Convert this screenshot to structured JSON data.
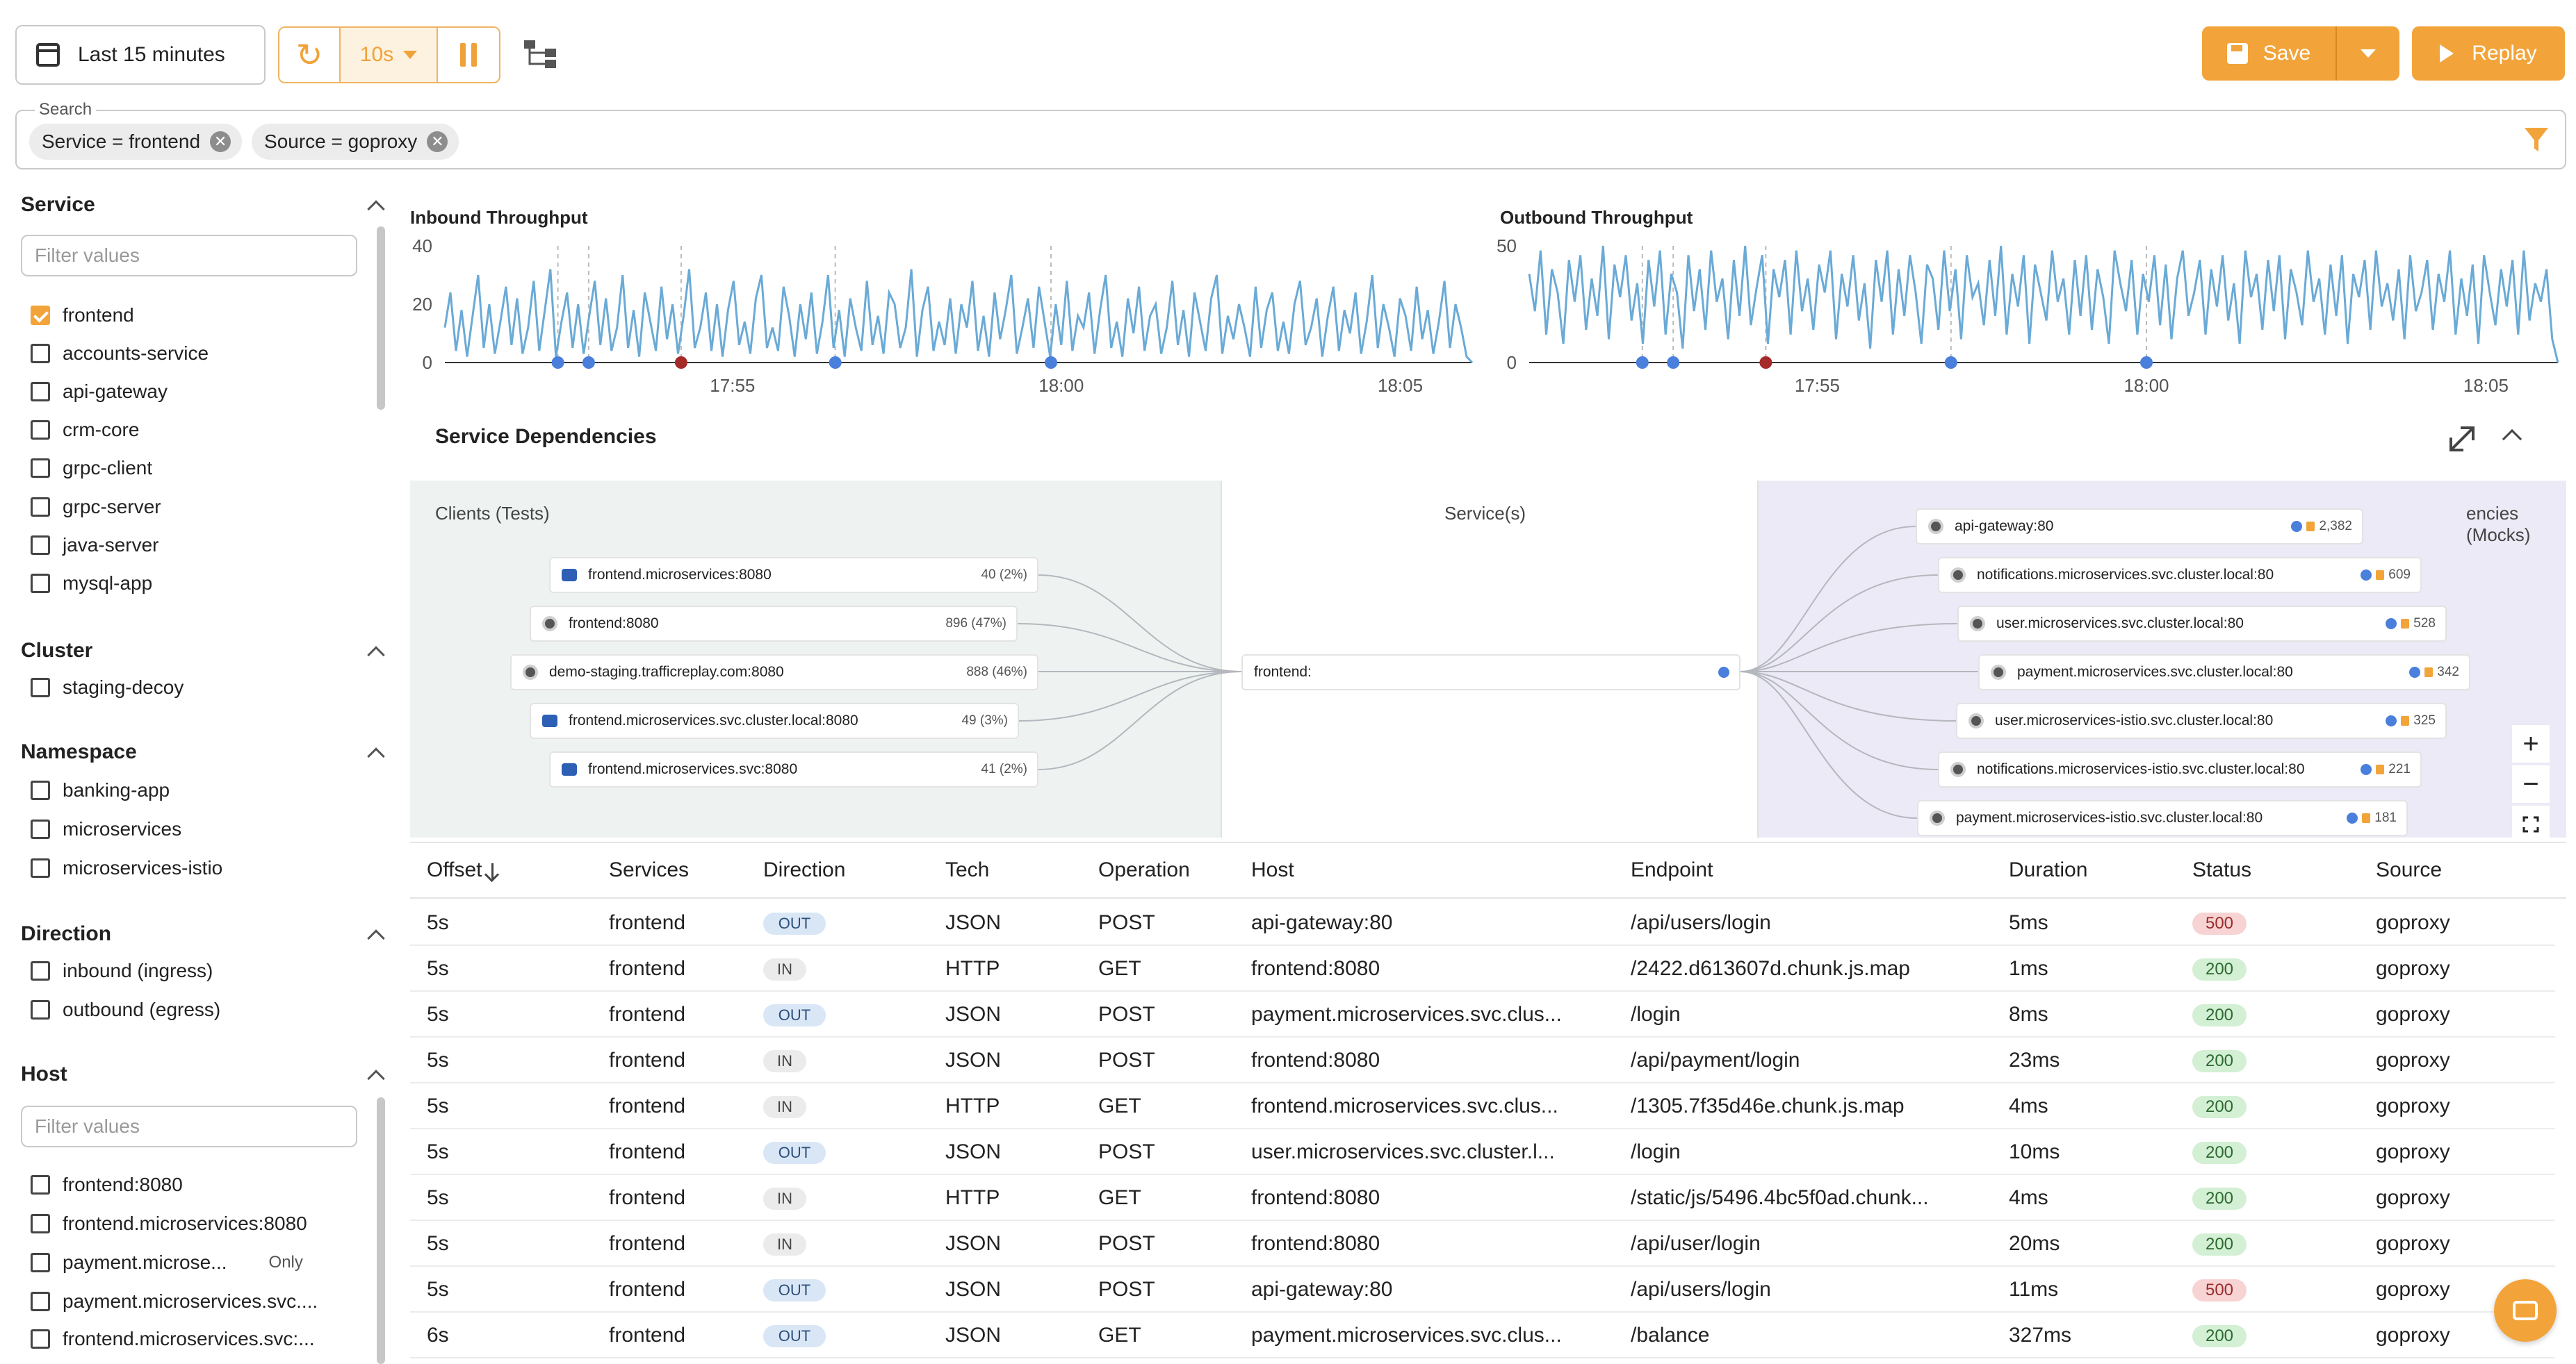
{
  "toolbar": {
    "time_range": "Last 15 minutes",
    "refresh_interval": "10s",
    "save_label": "Save",
    "replay_label": "Replay",
    "accent_color": "#f2a43a"
  },
  "search": {
    "legend": "Search",
    "chips": [
      {
        "label": "Service = frontend"
      },
      {
        "label": "Source = goproxy"
      }
    ]
  },
  "sidebar": {
    "service": {
      "title": "Service",
      "placeholder": "Filter values",
      "items": [
        {
          "label": "frontend",
          "checked": true
        },
        {
          "label": "accounts-service",
          "checked": false
        },
        {
          "label": "api-gateway",
          "checked": false
        },
        {
          "label": "crm-core",
          "checked": false
        },
        {
          "label": "grpc-client",
          "checked": false
        },
        {
          "label": "grpc-server",
          "checked": false
        },
        {
          "label": "java-server",
          "checked": false
        },
        {
          "label": "mysql-app",
          "checked": false
        }
      ]
    },
    "cluster": {
      "title": "Cluster",
      "items": [
        {
          "label": "staging-decoy"
        }
      ]
    },
    "namespace": {
      "title": "Namespace",
      "items": [
        {
          "label": "banking-app"
        },
        {
          "label": "microservices"
        },
        {
          "label": "microservices-istio"
        }
      ]
    },
    "direction": {
      "title": "Direction",
      "items": [
        {
          "label": "inbound (ingress)"
        },
        {
          "label": "outbound (egress)"
        }
      ]
    },
    "host": {
      "title": "Host",
      "placeholder": "Filter values",
      "only_label": "Only",
      "items": [
        {
          "label": "frontend:8080"
        },
        {
          "label": "frontend.microservices:8080"
        },
        {
          "label": "payment.microse..."
        },
        {
          "label": "payment.microservices.svc...."
        },
        {
          "label": "frontend.microservices.svc:..."
        }
      ]
    }
  },
  "chart_data": [
    {
      "type": "line",
      "title": "Inbound Throughput",
      "x_ticks": [
        "17:55",
        "18:00",
        "18:05"
      ],
      "y_ticks": [
        0,
        20,
        40
      ],
      "ylim": [
        0,
        40
      ],
      "color": "#6aaad6",
      "series": [
        {
          "values": [
            12,
            24,
            4,
            18,
            2,
            16,
            30,
            5,
            20,
            3,
            14,
            26,
            6,
            22,
            3,
            12,
            28,
            4,
            18,
            32,
            2,
            14,
            24,
            5,
            20,
            3,
            16,
            28,
            6,
            22,
            4,
            12,
            30,
            5,
            18,
            2,
            24,
            14,
            4,
            26,
            8,
            20,
            3,
            16,
            32,
            5,
            12,
            24,
            4,
            20,
            2,
            18,
            28,
            6,
            14,
            3,
            22,
            30,
            5,
            12,
            4,
            26,
            16,
            2,
            20,
            8,
            24,
            3,
            14,
            30,
            5,
            18,
            2,
            22,
            12,
            4,
            28,
            6,
            16,
            3,
            24,
            20,
            5,
            12,
            32,
            2,
            18,
            26,
            4,
            14,
            6,
            22,
            3,
            20,
            12,
            28,
            4,
            16,
            2,
            24,
            8,
            18,
            30,
            3,
            12,
            22,
            5,
            26,
            14,
            2,
            20,
            6,
            28,
            4,
            16,
            12,
            24,
            3,
            18,
            30,
            5,
            14,
            2,
            22,
            10,
            26,
            4,
            16,
            20,
            3,
            12,
            28,
            6,
            18,
            2,
            24,
            14,
            4,
            22,
            30,
            3,
            16,
            8,
            20,
            12,
            2,
            26,
            5,
            18,
            24,
            4,
            14,
            3,
            20,
            28,
            6,
            12,
            22,
            2,
            16,
            26,
            4,
            18,
            10,
            24,
            3,
            14,
            30,
            5,
            20,
            12,
            2,
            22,
            16,
            4,
            26,
            8,
            18,
            3,
            14,
            28,
            5,
            20,
            12,
            2,
            0
          ],
          "markers": [
            {
              "at": 0.11,
              "color": "#4a7fdc"
            },
            {
              "at": 0.14,
              "color": "#4a7fdc"
            },
            {
              "at": 0.23,
              "color": "#a52a2a"
            },
            {
              "at": 0.38,
              "color": "#4a7fdc"
            },
            {
              "at": 0.59,
              "color": "#4a7fdc"
            }
          ]
        }
      ]
    },
    {
      "type": "line",
      "title": "Outbound Throughput",
      "x_ticks": [
        "17:55",
        "18:00",
        "18:05"
      ],
      "y_ticks": [
        0,
        50
      ],
      "ylim": [
        0,
        50
      ],
      "color": "#6aaad6",
      "series": [
        {
          "values": [
            38,
            22,
            48,
            12,
            40,
            30,
            8,
            44,
            26,
            46,
            14,
            36,
            20,
            50,
            10,
            42,
            28,
            46,
            18,
            34,
            8,
            44,
            24,
            48,
            12,
            38,
            30,
            6,
            46,
            22,
            40,
            14,
            48,
            26,
            36,
            10,
            44,
            20,
            50,
            16,
            32,
            46,
            8,
            40,
            28,
            44,
            12,
            48,
            22,
            36,
            14,
            42,
            30,
            48,
            10,
            38,
            24,
            46,
            18,
            34,
            6,
            44,
            26,
            48,
            12,
            40,
            20,
            46,
            30,
            8,
            42,
            36,
            14,
            48,
            22,
            40,
            10,
            46,
            28,
            34,
            16,
            44,
            20,
            50,
            12,
            38,
            24,
            46,
            8,
            42,
            30,
            18,
            48,
            26,
            36,
            12,
            44,
            20,
            46,
            14,
            40,
            28,
            8,
            48,
            34,
            22,
            44,
            12,
            38,
            26,
            46,
            16,
            42,
            10,
            36,
            48,
            20,
            30,
            44,
            12,
            40,
            24,
            46,
            18,
            34,
            8,
            48,
            28,
            38,
            14,
            44,
            22,
            46,
            10,
            40,
            30,
            16,
            48,
            26,
            36,
            12,
            42,
            20,
            46,
            8,
            38,
            28,
            44,
            14,
            48,
            24,
            34,
            18,
            40,
            10,
            46,
            22,
            30,
            44,
            14,
            38,
            26,
            48,
            12,
            36,
            20,
            42,
            8,
            46,
            30,
            16,
            40,
            24,
            44,
            12,
            48,
            18,
            34,
            26,
            40,
            10,
            0
          ],
          "markers": [
            {
              "at": 0.11,
              "color": "#4a7fdc"
            },
            {
              "at": 0.14,
              "color": "#4a7fdc"
            },
            {
              "at": 0.23,
              "color": "#a52a2a"
            },
            {
              "at": 0.41,
              "color": "#4a7fdc"
            },
            {
              "at": 0.6,
              "color": "#4a7fdc"
            }
          ]
        }
      ]
    }
  ],
  "dependencies": {
    "title": "Service Dependencies",
    "col_clients": "Clients (Tests)",
    "col_services": "Service(s)",
    "col_deps": "encies (Mocks)",
    "clients": [
      {
        "label": "frontend.microservices:8080",
        "count": "40 (2%)",
        "icon": "json"
      },
      {
        "label": "frontend:8080",
        "count": "896 (47%)",
        "icon": "go"
      },
      {
        "label": "demo-staging.trafficreplay.com:8080",
        "count": "888 (46%)",
        "icon": "go"
      },
      {
        "label": "frontend.microservices.svc.cluster.local:8080",
        "count": "49 (3%)",
        "icon": "json"
      },
      {
        "label": "frontend.microservices.svc:8080",
        "count": "41 (2%)",
        "icon": "json"
      }
    ],
    "service": {
      "label": "frontend:"
    },
    "deps": [
      {
        "label": "api-gateway:80",
        "count": "2,382"
      },
      {
        "label": "notifications.microservices.svc.cluster.local:80",
        "count": "609"
      },
      {
        "label": "user.microservices.svc.cluster.local:80",
        "count": "528"
      },
      {
        "label": "payment.microservices.svc.cluster.local:80",
        "count": "342"
      },
      {
        "label": "user.microservices-istio.svc.cluster.local:80",
        "count": "325"
      },
      {
        "label": "notifications.microservices-istio.svc.cluster.local:80",
        "count": "221"
      },
      {
        "label": "payment.microservices-istio.svc.cluster.local:80",
        "count": "181"
      }
    ]
  },
  "table": {
    "columns": [
      "Offset",
      "Services",
      "Direction",
      "Tech",
      "Operation",
      "Host",
      "Endpoint",
      "Duration",
      "Status",
      "Source"
    ],
    "rows": [
      {
        "offset": "5s",
        "service": "frontend",
        "direction": "OUT",
        "tech": "JSON",
        "operation": "POST",
        "host": "api-gateway:80",
        "endpoint": "/api/users/login",
        "duration": "5ms",
        "status": "500",
        "source": "goproxy"
      },
      {
        "offset": "5s",
        "service": "frontend",
        "direction": "IN",
        "tech": "HTTP",
        "operation": "GET",
        "host": "frontend:8080",
        "endpoint": "/2422.d613607d.chunk.js.map",
        "duration": "1ms",
        "status": "200",
        "source": "goproxy"
      },
      {
        "offset": "5s",
        "service": "frontend",
        "direction": "OUT",
        "tech": "JSON",
        "operation": "POST",
        "host": "payment.microservices.svc.clus...",
        "endpoint": "/login",
        "duration": "8ms",
        "status": "200",
        "source": "goproxy"
      },
      {
        "offset": "5s",
        "service": "frontend",
        "direction": "IN",
        "tech": "JSON",
        "operation": "POST",
        "host": "frontend:8080",
        "endpoint": "/api/payment/login",
        "duration": "23ms",
        "status": "200",
        "source": "goproxy"
      },
      {
        "offset": "5s",
        "service": "frontend",
        "direction": "IN",
        "tech": "HTTP",
        "operation": "GET",
        "host": "frontend.microservices.svc.clus...",
        "endpoint": "/1305.7f35d46e.chunk.js.map",
        "duration": "4ms",
        "status": "200",
        "source": "goproxy"
      },
      {
        "offset": "5s",
        "service": "frontend",
        "direction": "OUT",
        "tech": "JSON",
        "operation": "POST",
        "host": "user.microservices.svc.cluster.l...",
        "endpoint": "/login",
        "duration": "10ms",
        "status": "200",
        "source": "goproxy"
      },
      {
        "offset": "5s",
        "service": "frontend",
        "direction": "IN",
        "tech": "HTTP",
        "operation": "GET",
        "host": "frontend:8080",
        "endpoint": "/static/js/5496.4bc5f0ad.chunk...",
        "duration": "4ms",
        "status": "200",
        "source": "goproxy"
      },
      {
        "offset": "5s",
        "service": "frontend",
        "direction": "IN",
        "tech": "JSON",
        "operation": "POST",
        "host": "frontend:8080",
        "endpoint": "/api/user/login",
        "duration": "20ms",
        "status": "200",
        "source": "goproxy"
      },
      {
        "offset": "5s",
        "service": "frontend",
        "direction": "OUT",
        "tech": "JSON",
        "operation": "POST",
        "host": "api-gateway:80",
        "endpoint": "/api/users/login",
        "duration": "11ms",
        "status": "500",
        "source": "goproxy"
      },
      {
        "offset": "6s",
        "service": "frontend",
        "direction": "OUT",
        "tech": "JSON",
        "operation": "GET",
        "host": "payment.microservices.svc.clus...",
        "endpoint": "/balance",
        "duration": "327ms",
        "status": "200",
        "source": "goproxy"
      }
    ]
  }
}
